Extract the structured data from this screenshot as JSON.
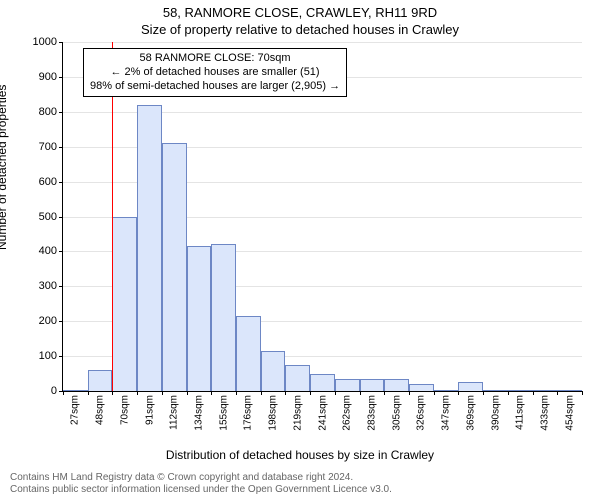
{
  "title_line1": "58, RANMORE CLOSE, CRAWLEY, RH11 9RD",
  "title_line2": "Size of property relative to detached houses in Crawley",
  "y_axis_label": "Number of detached properties",
  "x_axis_label": "Distribution of detached houses by size in Crawley",
  "footer_line1": "Contains HM Land Registry data © Crown copyright and database right 2024.",
  "footer_line2": "Contains public sector information licensed under the Open Government Licence v3.0.",
  "chart": {
    "type": "histogram",
    "ylim": [
      0,
      1000
    ],
    "ytick_step": 100,
    "grid_color": "#e4e4e4",
    "axis_color": "#000000",
    "background_color": "#ffffff",
    "bar_fill": "#dbe6fb",
    "bar_border": "#6d87c5",
    "bar_width_ratio": 1.0,
    "reference_line": {
      "x_index": 2,
      "color": "#ff0000",
      "width": 1
    },
    "x_labels": [
      "27sqm",
      "48sqm",
      "70sqm",
      "91sqm",
      "112sqm",
      "134sqm",
      "155sqm",
      "176sqm",
      "198sqm",
      "219sqm",
      "241sqm",
      "262sqm",
      "283sqm",
      "305sqm",
      "326sqm",
      "347sqm",
      "369sqm",
      "390sqm",
      "411sqm",
      "433sqm",
      "454sqm"
    ],
    "values": [
      1,
      60,
      500,
      820,
      710,
      415,
      420,
      215,
      115,
      75,
      50,
      35,
      35,
      35,
      20,
      1,
      25,
      1,
      1,
      1,
      1
    ]
  },
  "annotation": {
    "line1": "58 RANMORE CLOSE: 70sqm",
    "line2": "← 2% of detached houses are smaller (51)",
    "line3": "98% of semi-detached houses are larger (2,905) →",
    "border_color": "#000000",
    "background_color": "#ffffff",
    "font_size": 11
  },
  "typography": {
    "title_fontsize": 13,
    "axis_label_fontsize": 12,
    "tick_fontsize": 11,
    "footer_color": "#666666",
    "footer_fontsize": 10
  }
}
